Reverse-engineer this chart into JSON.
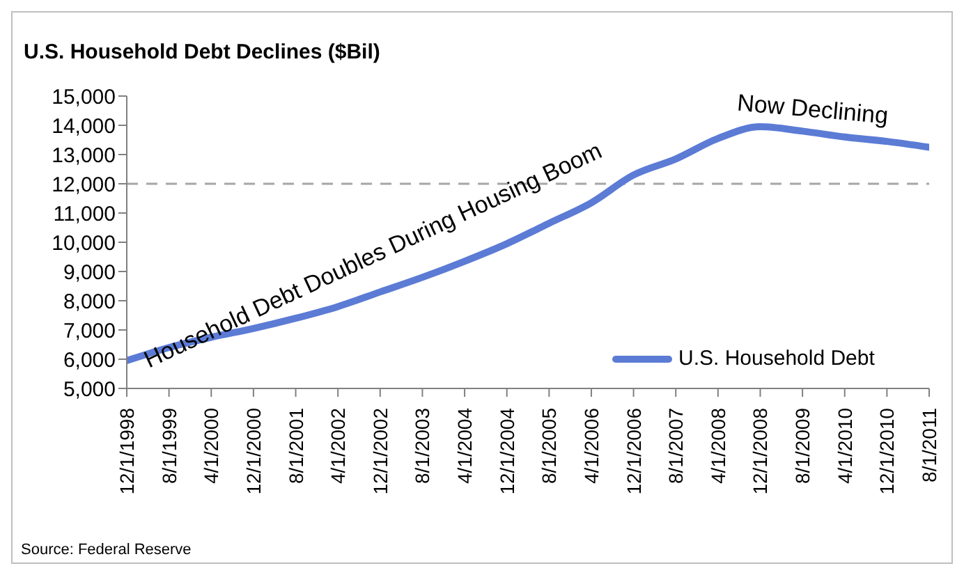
{
  "chart_data": {
    "type": "line",
    "title": "U.S. Household Debt Declines ($Bil)",
    "categories": [
      "12/1/1998",
      "8/1/1999",
      "4/1/2000",
      "12/1/2000",
      "8/1/2001",
      "4/1/2002",
      "12/1/2002",
      "8/1/2003",
      "4/1/2004",
      "12/1/2004",
      "8/1/2005",
      "4/1/2006",
      "12/1/2006",
      "8/1/2007",
      "4/1/2008",
      "12/1/2008",
      "8/1/2009",
      "4/1/2010",
      "12/1/2010",
      "8/1/2011"
    ],
    "series": [
      {
        "name": "U.S. Household Debt",
        "color": "#5b7bd5",
        "values": [
          5950,
          6400,
          6750,
          7050,
          7400,
          7800,
          8300,
          8800,
          9350,
          9950,
          10650,
          11350,
          12300,
          12850,
          13550,
          13950,
          13800,
          13600,
          13450,
          13250
        ]
      }
    ],
    "ylim": [
      5000,
      15000
    ],
    "yticks": [
      {
        "value": 5000,
        "label": "5,000"
      },
      {
        "value": 6000,
        "label": "6,000"
      },
      {
        "value": 7000,
        "label": "7,000"
      },
      {
        "value": 8000,
        "label": "8,000"
      },
      {
        "value": 9000,
        "label": "9,000"
      },
      {
        "value": 10000,
        "label": "10,000"
      },
      {
        "value": 11000,
        "label": "11,000"
      },
      {
        "value": 12000,
        "label": "12,000"
      },
      {
        "value": 13000,
        "label": "13,000"
      },
      {
        "value": 14000,
        "label": "14,000"
      },
      {
        "value": 15000,
        "label": "15,000"
      }
    ],
    "ref_lines": [
      {
        "axis": "y",
        "value": 12000,
        "color": "#a6a6a6",
        "line_style": "dashed"
      }
    ],
    "annotations": [
      "Household Debt Doubles During Housing Boom",
      "Now Declining",
      "Source: Federal Reserve"
    ],
    "legend": "right",
    "grid": false,
    "marker": "none",
    "line_style": "solid"
  }
}
